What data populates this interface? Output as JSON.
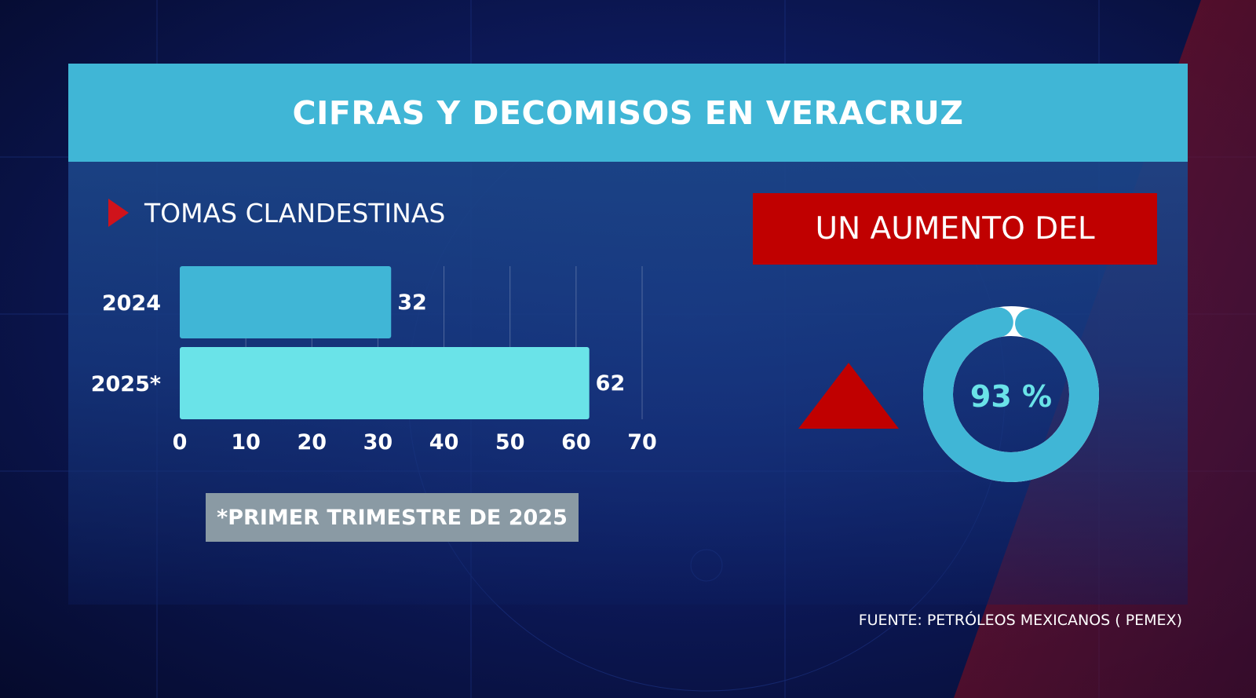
{
  "title": "CIFRAS Y DECOMISOS EN VERACRUZ",
  "section_label": "TOMAS CLANDESTINAS",
  "footnote": "*PRIMER TRIMESTRE DE 2025",
  "increase_label": "UN AUMENTO DEL",
  "increase_value": "93 %",
  "increase_fraction": 0.93,
  "source": "FUENTE: PETRÓLEOS MEXICANOS ( PEMEX)",
  "colors": {
    "header": "#40b6d6",
    "bar_2024": "#40b6d6",
    "bar_2025": "#6ae3e8",
    "accent_red": "#c00000",
    "donut": "#40b6d6",
    "donut_text": "#6ae3e8"
  },
  "chart_data": {
    "type": "bar",
    "orientation": "horizontal",
    "title": "TOMAS CLANDESTINAS",
    "categories": [
      "2024",
      "2025*"
    ],
    "values": [
      32,
      62
    ],
    "value_labels": [
      "32",
      "62"
    ],
    "xlim": [
      0,
      70
    ],
    "xticks": [
      0,
      10,
      20,
      30,
      40,
      50,
      60,
      70
    ],
    "grid": true,
    "xlabel": "",
    "ylabel": ""
  }
}
